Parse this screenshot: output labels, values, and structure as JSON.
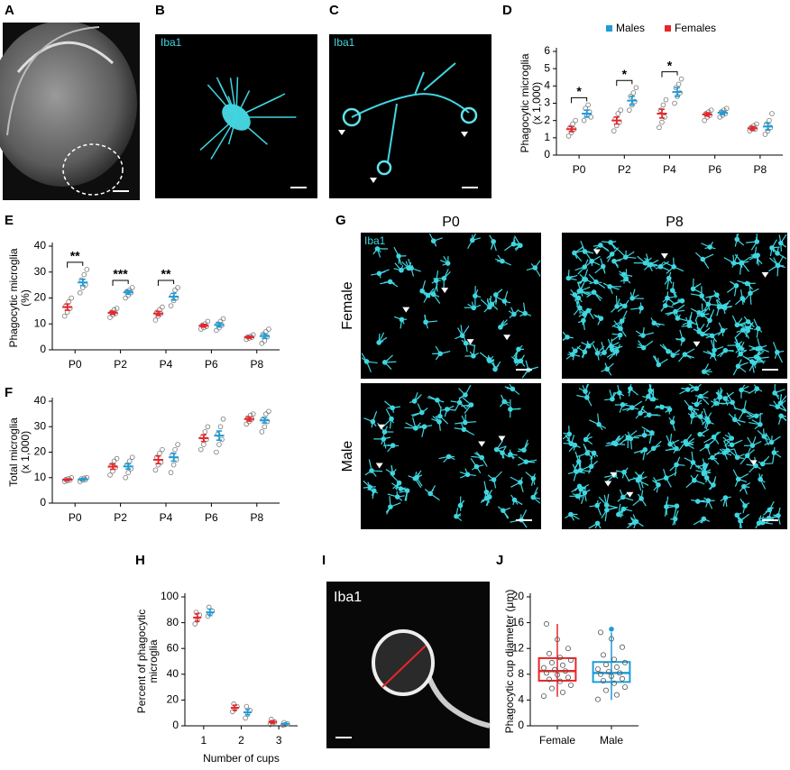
{
  "images": [
    {
      "panel": "A"
    },
    {
      "panel": "B",
      "label": "Iba1"
    },
    {
      "panel": "C",
      "label": "Iba1"
    },
    {
      "panel": "G",
      "label": "Iba1",
      "columns": [
        "P0",
        "P8"
      ],
      "rows": [
        "Female",
        "Male"
      ]
    },
    {
      "panel": "I",
      "label": "Iba1"
    }
  ],
  "chart_data": [
    {
      "type": "dot",
      "panel": "D",
      "ylabel": [
        "Phagocytic microglia",
        "(x 1,000)"
      ],
      "legend": "top",
      "categories": [
        "P0",
        "P2",
        "P4",
        "P6",
        "P8"
      ],
      "ylim": [
        0,
        6
      ],
      "yticks": [
        0,
        1,
        2,
        3,
        4,
        5,
        6
      ],
      "series": [
        {
          "name": "Males",
          "color": "#1e9cd7",
          "values": [
            2.4,
            3.15,
            3.65,
            2.45,
            1.65
          ],
          "errors": [
            0.2,
            0.25,
            0.25,
            0.1,
            0.2
          ],
          "points": [
            [
              2.0,
              2.3,
              2.5,
              2.7,
              2.9,
              2.2
            ],
            [
              2.6,
              2.9,
              3.1,
              3.4,
              3.6,
              3.9
            ],
            [
              3.0,
              3.4,
              3.6,
              3.9,
              4.1,
              4.4
            ],
            [
              2.2,
              2.3,
              2.4,
              2.5,
              2.6,
              2.7
            ],
            [
              1.2,
              1.4,
              1.6,
              1.8,
              2.0,
              2.4
            ]
          ]
        },
        {
          "name": "Females",
          "color": "#e8262a",
          "values": [
            1.5,
            2.0,
            2.4,
            2.35,
            1.55
          ],
          "errors": [
            0.15,
            0.2,
            0.25,
            0.1,
            0.1
          ],
          "points": [
            [
              1.1,
              1.3,
              1.5,
              1.6,
              1.8,
              2.0
            ],
            [
              1.4,
              1.7,
              1.9,
              2.1,
              2.4,
              2.6
            ],
            [
              1.6,
              1.9,
              2.2,
              2.6,
              2.9,
              3.2
            ],
            [
              2.0,
              2.2,
              2.3,
              2.4,
              2.5,
              2.6
            ],
            [
              1.4,
              1.5,
              1.5,
              1.6,
              1.7,
              1.8
            ]
          ]
        }
      ],
      "significance": [
        {
          "category": "P0",
          "label": "*"
        },
        {
          "category": "P2",
          "label": "*"
        },
        {
          "category": "P4",
          "label": "*"
        }
      ]
    },
    {
      "type": "dot",
      "panel": "E",
      "ylabel": [
        "Phagocytic microglia",
        "(%)"
      ],
      "categories": [
        "P0",
        "P2",
        "P4",
        "P6",
        "P8"
      ],
      "ylim": [
        0,
        40
      ],
      "yticks": [
        0,
        10,
        20,
        30,
        40
      ],
      "series": [
        {
          "color": "#1e9cd7",
          "values": [
            26,
            22.2,
            20.5,
            9.6,
            5.3
          ],
          "errors": [
            1.2,
            0.7,
            1.3,
            0.8,
            0.8
          ],
          "points": [
            [
              22,
              24,
              25,
              27,
              29,
              31
            ],
            [
              20,
              21,
              22,
              22.5,
              23,
              24
            ],
            [
              17,
              19,
              20,
              21,
              23,
              24
            ],
            [
              7.5,
              8.5,
              9.5,
              10,
              11,
              12
            ],
            [
              2.5,
              3.5,
              5,
              6,
              7,
              8
            ]
          ]
        },
        {
          "color": "#e8262a",
          "values": [
            16.5,
            14.3,
            14,
            9.3,
            4.9
          ],
          "errors": [
            1.2,
            0.6,
            0.8,
            0.5,
            0.4
          ],
          "points": [
            [
              13,
              14.5,
              16,
              17,
              18.5,
              20
            ],
            [
              12.5,
              13.5,
              14,
              14.5,
              15.5,
              16
            ],
            [
              11.5,
              13,
              14,
              14.5,
              15.5,
              16.5
            ],
            [
              8,
              8.5,
              9,
              9.5,
              10,
              11
            ],
            [
              4,
              4.5,
              4.8,
              5,
              5.2,
              5.8
            ]
          ]
        }
      ],
      "significance": [
        {
          "category": "P0",
          "label": "**"
        },
        {
          "category": "P2",
          "label": "***"
        },
        {
          "category": "P4",
          "label": "**"
        }
      ]
    },
    {
      "type": "dot",
      "panel": "F",
      "ylabel": [
        "Total microglia",
        "(x 1,000)"
      ],
      "categories": [
        "P0",
        "P2",
        "P4",
        "P6",
        "P8"
      ],
      "ylim": [
        0,
        40
      ],
      "yticks": [
        0,
        10,
        20,
        30,
        40
      ],
      "series": [
        {
          "color": "#1e9cd7",
          "values": [
            9.3,
            14.4,
            18,
            26.5,
            32.5
          ],
          "errors": [
            0.3,
            1,
            1.5,
            1.8,
            1
          ],
          "points": [
            [
              8.5,
              9,
              9.2,
              9.5,
              9.8,
              10
            ],
            [
              10,
              12,
              13.5,
              15,
              16.5,
              18
            ],
            [
              12,
              15,
              17,
              19,
              21,
              23
            ],
            [
              20,
              23,
              25,
              27,
              30,
              33
            ],
            [
              28,
              30,
              32,
              33,
              35,
              36
            ]
          ]
        },
        {
          "color": "#e8262a",
          "values": [
            9.2,
            14.3,
            17,
            25.5,
            33
          ],
          "errors": [
            0.3,
            1,
            1.5,
            1.3,
            0.8
          ],
          "points": [
            [
              8.5,
              8.8,
              9,
              9.3,
              9.6,
              10
            ],
            [
              11,
              12.5,
              14,
              15,
              16.5,
              17.5
            ],
            [
              13,
              15,
              16,
              18,
              19.5,
              21
            ],
            [
              21,
              23,
              25,
              26,
              28,
              30
            ],
            [
              31,
              32,
              33,
              33.5,
              34.5,
              35
            ]
          ]
        }
      ]
    },
    {
      "type": "dot",
      "panel": "H",
      "ylabel": [
        "Percent of phagocytic",
        "microglia"
      ],
      "xlabel": "Number of cups",
      "categories": [
        "1",
        "2",
        "3"
      ],
      "ylim": [
        0,
        100
      ],
      "yticks": [
        0,
        20,
        40,
        60,
        80,
        100
      ],
      "series": [
        {
          "color": "#1e9cd7",
          "values": [
            88,
            10.5,
            1.5
          ],
          "errors": [
            2.5,
            2,
            0.5
          ],
          "points": [
            [
              85,
              87,
              89,
              92
            ],
            [
              6,
              9,
              12,
              15
            ],
            [
              0.5,
              1,
              1.5,
              2.5
            ]
          ]
        },
        {
          "color": "#e8262a",
          "values": [
            84,
            14,
            3
          ],
          "errors": [
            3,
            2,
            1
          ],
          "points": [
            [
              79,
              82,
              86,
              88
            ],
            [
              11,
              13,
              15,
              17
            ],
            [
              1,
              2,
              3,
              5
            ]
          ]
        }
      ]
    },
    {
      "type": "box",
      "panel": "J",
      "ylabel": [
        "Phagocytic cup diameter (μm)"
      ],
      "categories": [
        "Female",
        "Male"
      ],
      "ylim": [
        0,
        20
      ],
      "yticks": [
        0,
        4,
        8,
        12,
        16,
        20
      ],
      "boxes": [
        {
          "color": "#e8262a",
          "whislo": 4.5,
          "q1": 7,
          "median": 8.5,
          "q3": 10.5,
          "whishi": 15.8,
          "fliers": [],
          "points": [
            4.6,
            5.2,
            5.8,
            6.3,
            6.9,
            7.2,
            7.5,
            7.9,
            8.2,
            8.5,
            8.7,
            9.0,
            9.4,
            9.8,
            10.2,
            10.6,
            11.2,
            12.0,
            13.4,
            15.8
          ]
        },
        {
          "color": "#1e9cd7",
          "whislo": 4,
          "q1": 6.8,
          "median": 8.2,
          "q3": 9.9,
          "whishi": 14.5,
          "fliers": [
            15
          ],
          "points": [
            4.1,
            4.8,
            5.5,
            6.0,
            6.6,
            7.0,
            7.3,
            7.7,
            8.0,
            8.2,
            8.4,
            8.8,
            9.1,
            9.5,
            9.8,
            10.3,
            11.0,
            12.2,
            13.5,
            14.5
          ]
        }
      ]
    }
  ]
}
